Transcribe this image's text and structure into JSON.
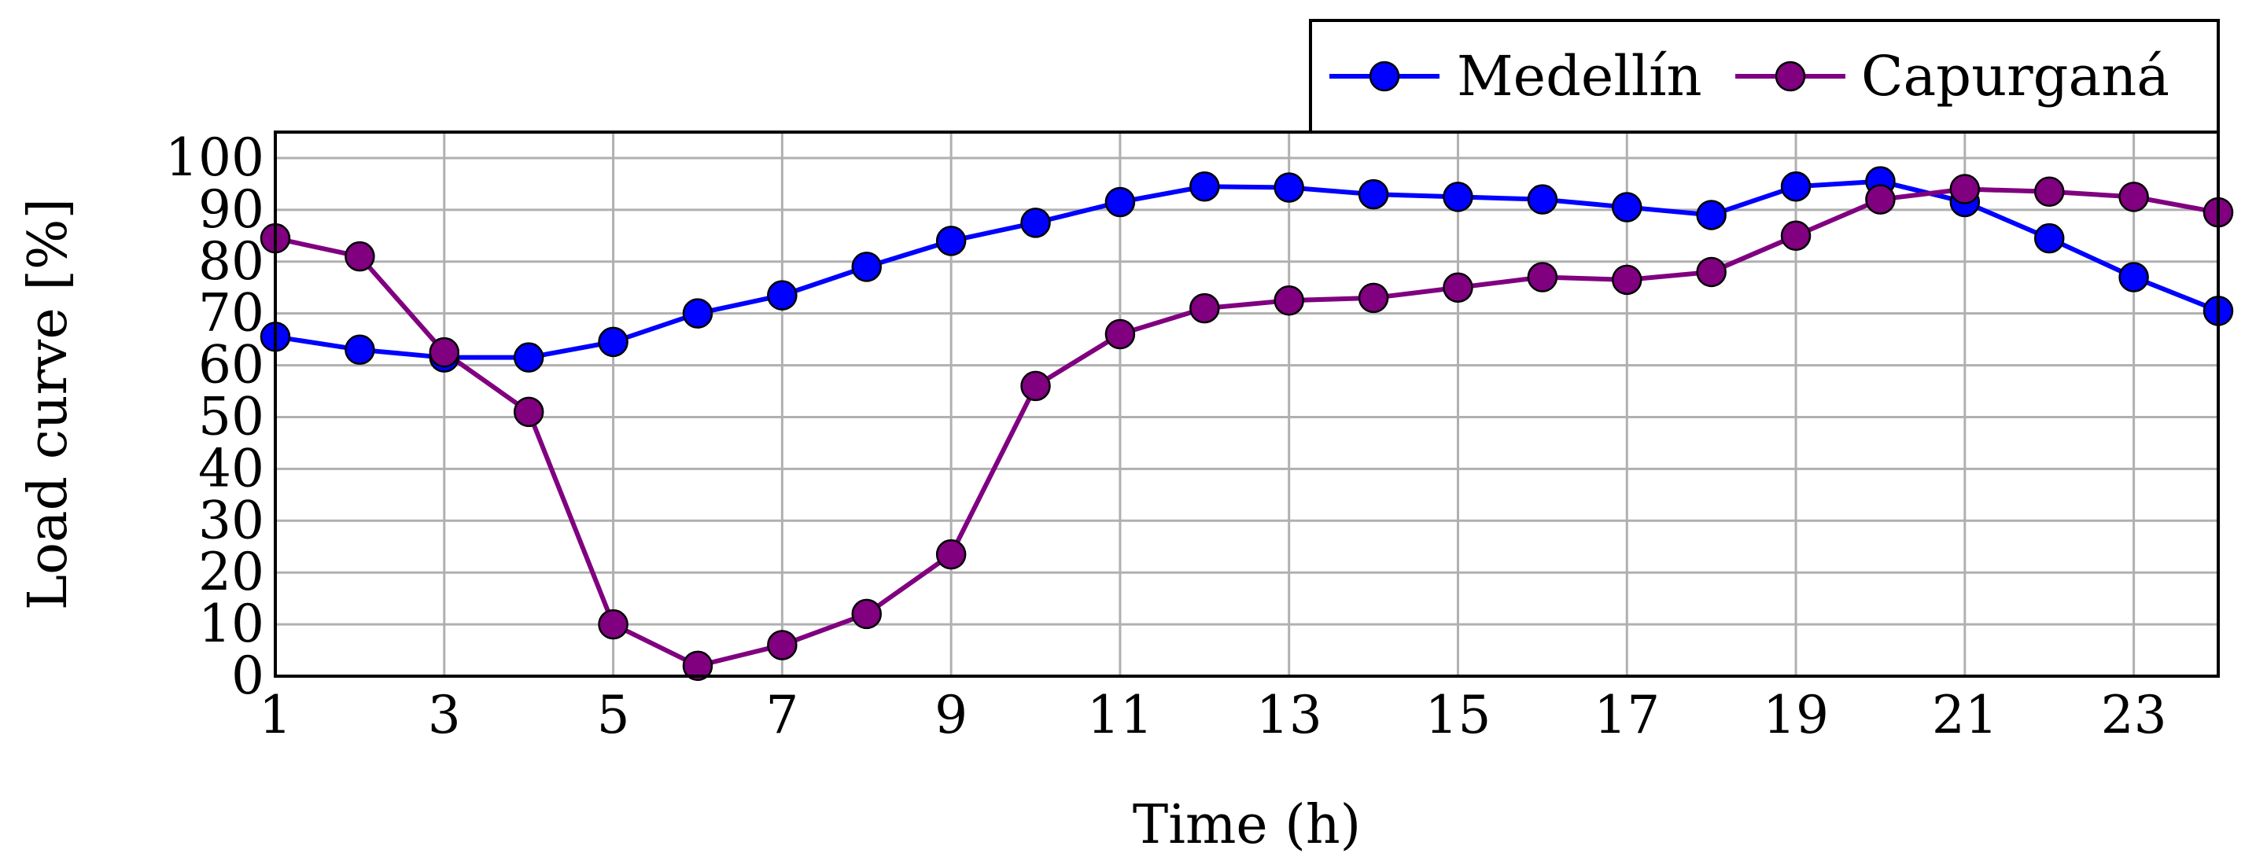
{
  "chart_data": {
    "type": "line",
    "xlabel": "Time (h)",
    "ylabel": "Load curve [%]",
    "x": [
      1,
      2,
      3,
      4,
      5,
      6,
      7,
      8,
      9,
      10,
      11,
      12,
      13,
      14,
      15,
      16,
      17,
      18,
      19,
      20,
      21,
      22,
      23,
      24
    ],
    "xlim": [
      1,
      24
    ],
    "ylim": [
      0,
      105
    ],
    "xticks": [
      1,
      3,
      5,
      7,
      9,
      11,
      13,
      15,
      17,
      19,
      21,
      23
    ],
    "yticks": [
      0,
      10,
      20,
      30,
      40,
      50,
      60,
      70,
      80,
      90,
      100
    ],
    "grid": true,
    "legend_position": "top-right, above plot",
    "series": [
      {
        "name": "Medellín",
        "color": "#0000ff",
        "values": [
          65.5,
          63,
          61.5,
          61.5,
          64.5,
          70,
          73.5,
          79,
          84,
          87.5,
          91.5,
          94.5,
          94.3,
          93,
          92.5,
          92,
          90.5,
          89,
          94.5,
          95.5,
          91.5,
          84.5,
          77,
          70.5
        ]
      },
      {
        "name": "Capurganá",
        "color": "#800080",
        "values": [
          84.5,
          81,
          62.5,
          51,
          10,
          2,
          6,
          12,
          23.5,
          56,
          66,
          71,
          72.5,
          73,
          75,
          77,
          76.5,
          78,
          85,
          92,
          94,
          93.5,
          92.5,
          89.5
        ]
      }
    ]
  }
}
